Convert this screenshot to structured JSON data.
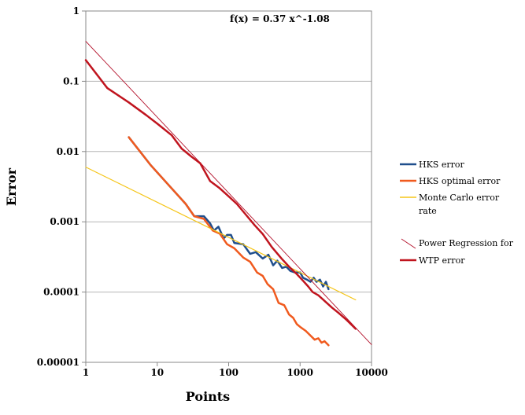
{
  "chart_data": {
    "type": "line",
    "title": "",
    "xlabel": "Points",
    "ylabel": "Error",
    "x_scale": "log",
    "y_scale": "log",
    "xlim": [
      1,
      10000
    ],
    "ylim": [
      1e-05,
      1
    ],
    "grid": "horizontal",
    "legend_position": "right",
    "x_tick_labels": [
      "1",
      "10",
      "100",
      "1000",
      "10000"
    ],
    "y_tick_labels": [
      "0.00001",
      "0.0001",
      "0.001",
      "0.01",
      "0.1",
      "1"
    ],
    "annotation": "f(x) = 0.37 x^-1.08",
    "series": [
      {
        "name": "HKS error",
        "color": "#1f4e8c",
        "width": 2.5,
        "points": [
          [
            4,
            0.016
          ],
          [
            8,
            0.0065
          ],
          [
            15,
            0.0032
          ],
          [
            25,
            0.0018
          ],
          [
            33,
            0.0012
          ],
          [
            45,
            0.0012
          ],
          [
            55,
            0.00095
          ],
          [
            62,
            0.00075
          ],
          [
            72,
            0.00085
          ],
          [
            85,
            0.00058
          ],
          [
            95,
            0.00065
          ],
          [
            108,
            0.00065
          ],
          [
            120,
            0.0005
          ],
          [
            160,
            0.00048
          ],
          [
            200,
            0.00035
          ],
          [
            240,
            0.00037
          ],
          [
            300,
            0.0003
          ],
          [
            360,
            0.00034
          ],
          [
            420,
            0.00024
          ],
          [
            480,
            0.00028
          ],
          [
            560,
            0.00022
          ],
          [
            640,
            0.00023
          ],
          [
            730,
            0.0002
          ],
          [
            850,
            0.00019
          ],
          [
            1000,
            0.00019
          ],
          [
            1100,
            0.00016
          ],
          [
            1250,
            0.00015
          ],
          [
            1400,
            0.00014
          ],
          [
            1550,
            0.00016
          ],
          [
            1700,
            0.00014
          ],
          [
            1900,
            0.00015
          ],
          [
            2100,
            0.00012
          ],
          [
            2300,
            0.00014
          ],
          [
            2500,
            0.00011
          ]
        ]
      },
      {
        "name": "HKS optimal error",
        "color": "#f05a1e",
        "width": 2.5,
        "points": [
          [
            4,
            0.016
          ],
          [
            8,
            0.0065
          ],
          [
            15,
            0.0032
          ],
          [
            25,
            0.0018
          ],
          [
            33,
            0.0012
          ],
          [
            45,
            0.0011
          ],
          [
            60,
            0.00075
          ],
          [
            75,
            0.00068
          ],
          [
            95,
            0.00048
          ],
          [
            120,
            0.00042
          ],
          [
            160,
            0.00031
          ],
          [
            200,
            0.00027
          ],
          [
            250,
            0.00019
          ],
          [
            300,
            0.00017
          ],
          [
            350,
            0.00013
          ],
          [
            420,
            0.00011
          ],
          [
            500,
            7e-05
          ],
          [
            600,
            6.5e-05
          ],
          [
            700,
            4.8e-05
          ],
          [
            800,
            4.3e-05
          ],
          [
            900,
            3.5e-05
          ],
          [
            1000,
            3.2e-05
          ],
          [
            1200,
            2.8e-05
          ],
          [
            1400,
            2.4e-05
          ],
          [
            1600,
            2.1e-05
          ],
          [
            1800,
            2.2e-05
          ],
          [
            2000,
            1.9e-05
          ],
          [
            2200,
            2e-05
          ],
          [
            2500,
            1.75e-05
          ]
        ]
      },
      {
        "name": "Monte Carlo error rate",
        "color": "#f5c518",
        "width": 1.2,
        "points": [
          [
            1,
            0.006
          ],
          [
            6000,
            7.75e-05
          ]
        ]
      },
      {
        "name": "Power Regression for WTP error",
        "color": "#b3102a",
        "width": 0.9,
        "points": [
          [
            1,
            0.37
          ],
          [
            10000,
            1.79e-05
          ]
        ]
      },
      {
        "name": "WTP error",
        "color": "#c0141e",
        "width": 2.5,
        "points": [
          [
            1,
            0.2
          ],
          [
            2,
            0.08
          ],
          [
            4,
            0.05
          ],
          [
            7,
            0.033
          ],
          [
            10,
            0.025
          ],
          [
            16,
            0.017
          ],
          [
            22,
            0.011
          ],
          [
            30,
            0.0085
          ],
          [
            40,
            0.0068
          ],
          [
            55,
            0.0038
          ],
          [
            75,
            0.003
          ],
          [
            100,
            0.0023
          ],
          [
            130,
            0.0018
          ],
          [
            170,
            0.0013
          ],
          [
            230,
            0.0009
          ],
          [
            300,
            0.00067
          ],
          [
            400,
            0.00044
          ],
          [
            550,
            0.0003
          ],
          [
            700,
            0.00023
          ],
          [
            900,
            0.00018
          ],
          [
            1100,
            0.000145
          ],
          [
            1300,
            0.00012
          ],
          [
            1500,
            0.0001
          ],
          [
            1800,
            9e-05
          ],
          [
            2200,
            7.5e-05
          ],
          [
            2800,
            6e-05
          ],
          [
            3500,
            5e-05
          ],
          [
            4500,
            4e-05
          ],
          [
            6000,
            3e-05
          ]
        ]
      }
    ],
    "legend": {
      "hks": "HKS error",
      "hks_optimal": "HKS optimal error",
      "mc_line1": "Monte Carlo error",
      "mc_line2": "rate",
      "power_line1": "Power Regression for",
      "wtp": "WTP error"
    }
  }
}
